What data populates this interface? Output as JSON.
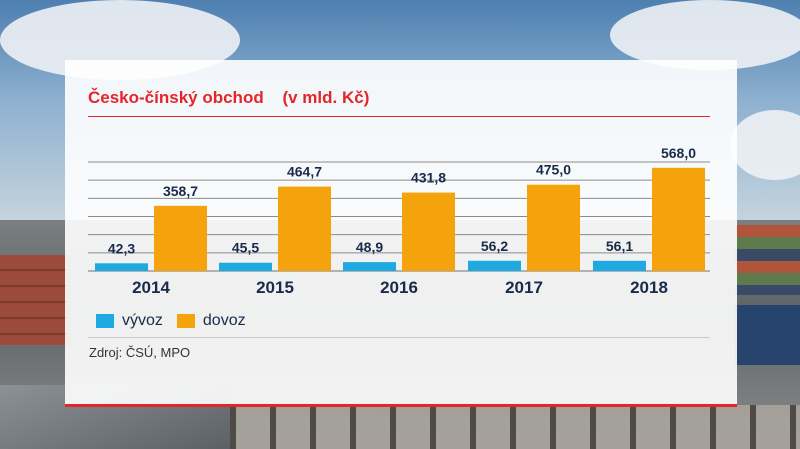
{
  "title": "Česko-čínský obchod",
  "unit": "(v mld. Kč)",
  "source": "Zdroj: ČSÚ, MPO",
  "colors": {
    "export": "#1ea9e1",
    "import": "#f5a30c",
    "accent": "#e3262a",
    "text": "#1a2a4a",
    "grid": "#8b8b8b"
  },
  "chart_data": {
    "type": "bar",
    "title": "Česko-čínský obchod (v mld. Kč)",
    "xlabel": "",
    "ylabel": "",
    "categories": [
      "2014",
      "2015",
      "2016",
      "2017",
      "2018"
    ],
    "series": [
      {
        "name": "vývoz",
        "values": [
          42.3,
          45.5,
          48.9,
          56.2,
          56.1
        ],
        "labels": [
          "42,3",
          "45,5",
          "48,9",
          "56,2",
          "56,1"
        ]
      },
      {
        "name": "dovoz",
        "values": [
          358.7,
          464.7,
          431.8,
          475.0,
          568.0
        ],
        "labels": [
          "358,7",
          "464,7",
          "431,8",
          "475,0",
          "568,0"
        ]
      }
    ],
    "ylim": [
      0,
      600
    ],
    "grid": true,
    "legend": "bottom-left"
  }
}
